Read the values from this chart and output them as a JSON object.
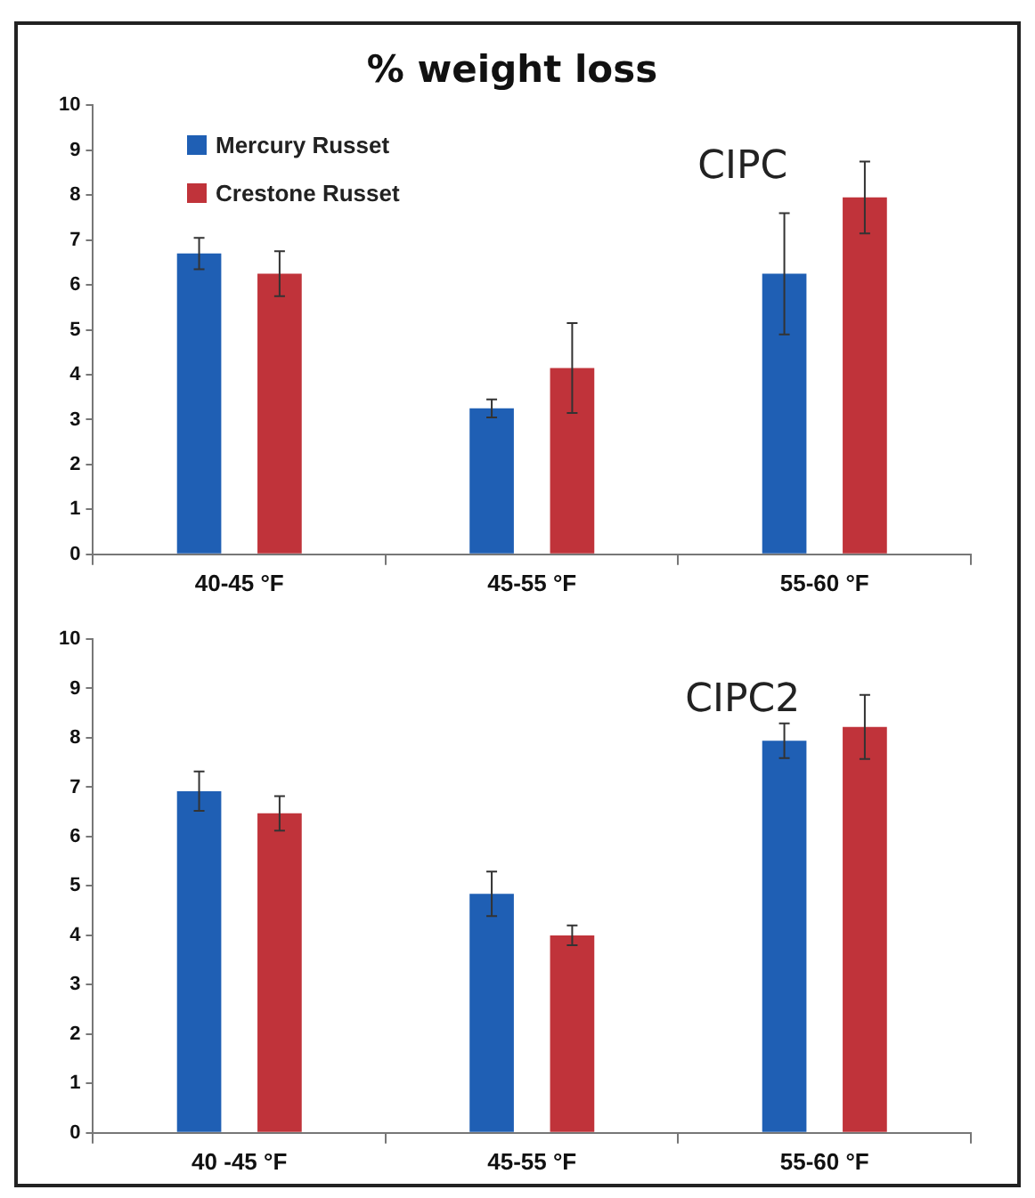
{
  "chart_data": [
    {
      "type": "bar",
      "title": "% weight loss",
      "categories": [
        "40-45 °F",
        "45-55 °F",
        "55-60 °F"
      ],
      "series": [
        {
          "name": "Mercury Russet",
          "color": "#1f5fb4",
          "values": [
            6.7,
            3.25,
            6.25
          ],
          "errors": [
            0.35,
            0.2,
            1.35
          ]
        },
        {
          "name": "Crestone Russet",
          "color": "#c0333a",
          "values": [
            6.25,
            4.15,
            7.95
          ],
          "errors": [
            0.5,
            1.0,
            0.8
          ]
        }
      ],
      "ylim": [
        0,
        10
      ],
      "yticks": [
        0,
        1,
        2,
        3,
        4,
        5,
        6,
        7,
        8,
        9,
        10
      ],
      "grid": false,
      "legend": "top left",
      "annotations": [
        "CIPC"
      ]
    },
    {
      "type": "bar",
      "categories": [
        "40 -45 °F",
        "45-55 °F",
        "55-60 °F"
      ],
      "series": [
        {
          "color": "#1f5fb4",
          "values": [
            6.92,
            4.84,
            7.94
          ],
          "errors": [
            0.4,
            0.45,
            0.35
          ]
        },
        {
          "color": "#c0333a",
          "values": [
            6.47,
            4.0,
            8.22
          ],
          "errors": [
            0.35,
            0.2,
            0.65
          ]
        }
      ],
      "ylim": [
        0,
        10
      ],
      "yticks": [
        0,
        1,
        2,
        3,
        4,
        5,
        6,
        7,
        8,
        9,
        10
      ],
      "grid": false,
      "legend": false,
      "annotations": [
        "CIPC2"
      ]
    }
  ]
}
